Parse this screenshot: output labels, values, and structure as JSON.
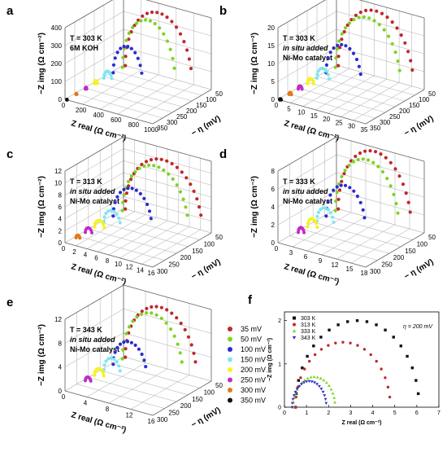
{
  "legend": {
    "entries": [
      {
        "label": "35 mV",
        "color": "#c0282d"
      },
      {
        "label": "50 mV",
        "color": "#7ed321"
      },
      {
        "label": "100 mV",
        "color": "#2b2bd0"
      },
      {
        "label": "150 mV",
        "color": "#7fe6f0"
      },
      {
        "label": "200 mV",
        "color": "#f7f21c"
      },
      {
        "label": "250 mV",
        "color": "#c22bc9"
      },
      {
        "label": "300 mV",
        "color": "#e07a1d"
      },
      {
        "label": "350 mV",
        "color": "#111111"
      }
    ]
  },
  "chart_data": [
    {
      "type": "scatter",
      "panel": "a",
      "annotation_lines": [
        "T = 303 K",
        "6M KOH"
      ],
      "annotation_italic": [
        false,
        false
      ],
      "zlabel": "−Z img (Ω cm⁻²)",
      "xlabel": "Z real (Ω cm⁻²)",
      "ylabel": "− η (mV)",
      "x_ticks": [
        "0",
        "200",
        "400",
        "600",
        "800",
        "1000"
      ],
      "z_ticks": [
        "0",
        "100",
        "200",
        "300",
        "400"
      ],
      "y_ticks": [
        "50",
        "100",
        "150",
        "200",
        "250",
        "300",
        "350"
      ],
      "x_max": 1000,
      "z_max": 450,
      "arcs": [
        {
          "overpotential_mV": 35,
          "diameter": 760,
          "peak": 390
        },
        {
          "overpotential_mV": 50,
          "diameter": 600,
          "peak": 340
        },
        {
          "overpotential_mV": 100,
          "diameter": 330,
          "peak": 190
        },
        {
          "overpotential_mV": 150,
          "diameter": 90,
          "peak": 50
        },
        {
          "overpotential_mV": 200,
          "diameter": 30,
          "peak": 20
        },
        {
          "overpotential_mV": 250,
          "diameter": 15,
          "peak": 12
        },
        {
          "overpotential_mV": 300,
          "diameter": 8,
          "peak": 6
        },
        {
          "overpotential_mV": 350,
          "diameter": 4,
          "peak": 3
        }
      ]
    },
    {
      "type": "scatter",
      "panel": "b",
      "annotation_lines": [
        "T = 303 K",
        "in situ added",
        "Ni-Mo catalyst"
      ],
      "annotation_italic": [
        false,
        true,
        false
      ],
      "zlabel": "−Z img (Ω cm⁻²)",
      "xlabel": "Z real (Ω cm⁻²)",
      "ylabel": "− η (mV)",
      "x_ticks": [
        "0",
        "5",
        "10",
        "15",
        "20",
        "25",
        "30",
        "35"
      ],
      "z_ticks": [
        "0",
        "5",
        "10",
        "15",
        "20"
      ],
      "y_ticks": [
        "50",
        "100",
        "150",
        "200",
        "250",
        "300",
        "350"
      ],
      "x_max": 35,
      "z_max": 22,
      "arcs": [
        {
          "overpotential_mV": 35,
          "diameter": 30,
          "peak": 20
        },
        {
          "overpotential_mV": 50,
          "diameter": 26,
          "peak": 18
        },
        {
          "overpotential_mV": 100,
          "diameter": 14,
          "peak": 10
        },
        {
          "overpotential_mV": 150,
          "diameter": 5,
          "peak": 3.5
        },
        {
          "overpotential_mV": 200,
          "diameter": 2.5,
          "peak": 1.8
        },
        {
          "overpotential_mV": 250,
          "diameter": 1.5,
          "peak": 1.1
        },
        {
          "overpotential_mV": 300,
          "diameter": 1,
          "peak": 0.7
        },
        {
          "overpotential_mV": 350,
          "diameter": 0.6,
          "peak": 0.4
        }
      ]
    },
    {
      "type": "scatter",
      "panel": "c",
      "annotation_lines": [
        "T = 313 K",
        "in situ added",
        "Ni-Mo catalyst"
      ],
      "annotation_italic": [
        false,
        true,
        false
      ],
      "zlabel": "−Z img (Ω cm⁻²)",
      "xlabel": "Z real (Ω cm⁻²)",
      "ylabel": "− η (mV)",
      "x_ticks": [
        "0",
        "2",
        "4",
        "6",
        "8",
        "10",
        "12",
        "14",
        "16"
      ],
      "z_ticks": [
        "0",
        "2",
        "4",
        "6",
        "8",
        "10",
        "12"
      ],
      "y_ticks": [
        "50",
        "100",
        "150",
        "200",
        "250",
        "300"
      ],
      "x_max": 16,
      "z_max": 12,
      "arcs": [
        {
          "overpotential_mV": 35,
          "diameter": 14,
          "peak": 10
        },
        {
          "overpotential_mV": 50,
          "diameter": 12,
          "peak": 9
        },
        {
          "overpotential_mV": 100,
          "diameter": 7,
          "peak": 5.5
        },
        {
          "overpotential_mV": 150,
          "diameter": 3,
          "peak": 2.2
        },
        {
          "overpotential_mV": 200,
          "diameter": 1.8,
          "peak": 1.3
        },
        {
          "overpotential_mV": 250,
          "diameter": 1.2,
          "peak": 0.9
        },
        {
          "overpotential_mV": 300,
          "diameter": 0.7,
          "peak": 0.5
        }
      ]
    },
    {
      "type": "scatter",
      "panel": "d",
      "annotation_lines": [
        "T = 333 K",
        "in situ added",
        "Ni-Mo catalyst"
      ],
      "annotation_italic": [
        false,
        true,
        false
      ],
      "zlabel": "−Z img (Ω cm⁻²)",
      "xlabel": "Z real (Ω cm⁻²)",
      "ylabel": "− η (mV)",
      "x_ticks": [
        "0",
        "3",
        "6",
        "9",
        "12",
        "15",
        "18"
      ],
      "z_ticks": [
        "0",
        "2",
        "4",
        "6",
        "8"
      ],
      "y_ticks": [
        "50",
        "100",
        "150",
        "200",
        "250",
        "300"
      ],
      "x_max": 18,
      "z_max": 9,
      "arcs": [
        {
          "overpotential_mV": 35,
          "diameter": 15,
          "peak": 8.5
        },
        {
          "overpotential_mV": 50,
          "diameter": 13,
          "peak": 7.5
        },
        {
          "overpotential_mV": 100,
          "diameter": 8,
          "peak": 4.5
        },
        {
          "overpotential_mV": 150,
          "diameter": 3.5,
          "peak": 2
        },
        {
          "overpotential_mV": 200,
          "diameter": 2,
          "peak": 1.2
        },
        {
          "overpotential_mV": 250,
          "diameter": 1.2,
          "peak": 0.7
        }
      ]
    },
    {
      "type": "scatter",
      "panel": "e",
      "annotation_lines": [
        "T = 343 K",
        "in situ added",
        "Ni-Mo catalyst"
      ],
      "annotation_italic": [
        false,
        true,
        false
      ],
      "zlabel": "−Z img (Ω cm⁻²)",
      "xlabel": "Z real (Ω cm⁻²)",
      "ylabel": "− η (mV)",
      "x_ticks": [
        "0",
        "4",
        "8",
        "12",
        "16"
      ],
      "z_ticks": [
        "0",
        "4",
        "8",
        "12"
      ],
      "y_ticks": [
        "50",
        "100",
        "150",
        "200",
        "250",
        "300"
      ],
      "x_max": 16,
      "z_max": 12,
      "arcs": [
        {
          "overpotential_mV": 35,
          "diameter": 13,
          "peak": 10
        },
        {
          "overpotential_mV": 50,
          "diameter": 11,
          "peak": 9
        },
        {
          "overpotential_mV": 100,
          "diameter": 6,
          "peak": 4.5
        },
        {
          "overpotential_mV": 150,
          "diameter": 3,
          "peak": 2.3
        },
        {
          "overpotential_mV": 200,
          "diameter": 1.7,
          "peak": 1.3
        },
        {
          "overpotential_mV": 250,
          "diameter": 1,
          "peak": 0.7
        }
      ]
    },
    {
      "type": "scatter",
      "panel": "f",
      "annotation": "η = 200 mV",
      "xlabel": "Z real (Ω cm⁻²)",
      "ylabel": "−Z img (Ω cm⁻²)",
      "xlim": [
        0,
        7
      ],
      "ylim": [
        0,
        2.2
      ],
      "x_ticks": [
        "0",
        "1",
        "2",
        "3",
        "4",
        "5",
        "6",
        "7"
      ],
      "y_ticks": [
        "0",
        "1",
        "2"
      ],
      "series": [
        {
          "name": "303 K",
          "color": "#111111",
          "marker": "square",
          "start": 0.5,
          "end": 6.1,
          "peak": 2.0
        },
        {
          "name": "313 K",
          "color": "#c0282d",
          "marker": "circle",
          "start": 0.5,
          "end": 4.8,
          "peak": 1.5
        },
        {
          "name": "333 K",
          "color": "#7ed321",
          "marker": "triangle-up",
          "start": 0.4,
          "end": 2.3,
          "peak": 0.7
        },
        {
          "name": "343 K",
          "color": "#2b2bd0",
          "marker": "triangle-down",
          "start": 0.35,
          "end": 1.9,
          "peak": 0.6
        }
      ]
    }
  ]
}
